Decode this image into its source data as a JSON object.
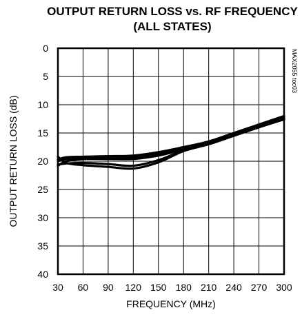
{
  "chart_data": {
    "type": "line",
    "title": "OUTPUT RETURN LOSS vs. RF FREQUENCY",
    "subtitle": "(ALL STATES)",
    "xlabel": "FREQUENCY (MHz)",
    "ylabel": "OUTPUT RETURN LOSS (dB)",
    "xlim": [
      30,
      300
    ],
    "ylim": [
      0,
      40
    ],
    "y_inverted": true,
    "x_ticks": [
      30,
      60,
      90,
      120,
      150,
      180,
      210,
      240,
      270,
      300
    ],
    "y_ticks": [
      0,
      5,
      10,
      15,
      20,
      25,
      30,
      35,
      40
    ],
    "grid": true,
    "chart_id": "MAX2055 toc03",
    "series": [
      {
        "values": [
          [
            30,
            20.8
          ],
          [
            40,
            20.0
          ],
          [
            60,
            19.6
          ],
          [
            90,
            19.6
          ],
          [
            120,
            19.6
          ],
          [
            150,
            19.0
          ],
          [
            180,
            17.9
          ],
          [
            210,
            16.9
          ],
          [
            240,
            15.4
          ],
          [
            270,
            13.9
          ],
          [
            300,
            12.4
          ]
        ]
      },
      {
        "values": [
          [
            30,
            20.0
          ],
          [
            40,
            19.6
          ],
          [
            60,
            19.3
          ],
          [
            90,
            19.3
          ],
          [
            120,
            19.3
          ],
          [
            150,
            18.7
          ],
          [
            180,
            17.7
          ],
          [
            210,
            16.7
          ],
          [
            240,
            15.2
          ],
          [
            270,
            13.7
          ],
          [
            300,
            12.2
          ]
        ]
      },
      {
        "values": [
          [
            30,
            19.2
          ],
          [
            40,
            20.3
          ],
          [
            60,
            20.7
          ],
          [
            90,
            21.0
          ],
          [
            120,
            21.3
          ],
          [
            150,
            20.2
          ],
          [
            180,
            18.2
          ],
          [
            210,
            17.0
          ],
          [
            240,
            15.5
          ],
          [
            270,
            14.0
          ],
          [
            300,
            12.6
          ]
        ]
      },
      {
        "values": [
          [
            30,
            20.6
          ],
          [
            40,
            20.4
          ],
          [
            60,
            20.3
          ],
          [
            90,
            20.5
          ],
          [
            120,
            20.8
          ],
          [
            150,
            19.8
          ],
          [
            180,
            18.1
          ],
          [
            210,
            16.9
          ],
          [
            240,
            15.4
          ],
          [
            270,
            13.9
          ],
          [
            300,
            12.5
          ]
        ]
      },
      {
        "values": [
          [
            30,
            19.7
          ],
          [
            40,
            19.3
          ],
          [
            60,
            19.2
          ],
          [
            90,
            19.1
          ],
          [
            120,
            19.0
          ],
          [
            150,
            18.4
          ],
          [
            180,
            17.5
          ],
          [
            210,
            16.5
          ],
          [
            240,
            15.0
          ],
          [
            270,
            13.5
          ],
          [
            300,
            12.0
          ]
        ]
      }
    ]
  }
}
